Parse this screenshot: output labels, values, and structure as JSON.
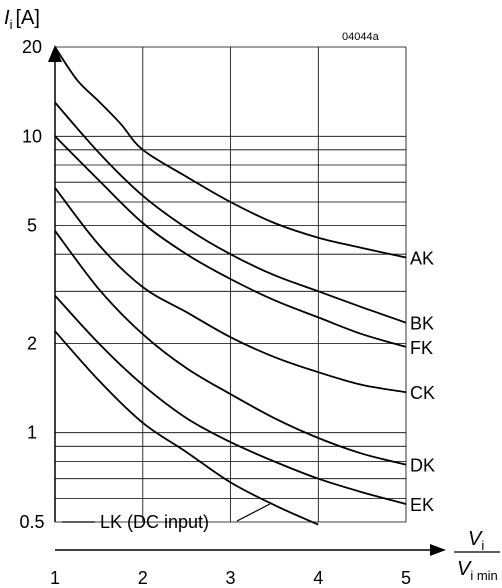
{
  "chart_data": {
    "type": "line",
    "y_scale": "log",
    "grid": "on",
    "code": "04044a",
    "ylabel": {
      "symbol": "I",
      "subscript": "i",
      "unit": "[A]"
    },
    "xlabel": {
      "num_symbol": "V",
      "num_sub": "i",
      "den_symbol": "V",
      "den_sub": "i min"
    },
    "xlim": [
      1,
      5
    ],
    "ylim": [
      0.5,
      20
    ],
    "x_ticks": [
      "1",
      "2",
      "3",
      "4",
      "5"
    ],
    "y_ticks": [
      {
        "value": 20,
        "label": "20"
      },
      {
        "value": 10,
        "label": "10"
      },
      {
        "value": 5,
        "label": "5"
      },
      {
        "value": 2,
        "label": "2"
      },
      {
        "value": 1,
        "label": "1"
      },
      {
        "value": 0.5,
        "label": "0.5"
      }
    ],
    "series": [
      {
        "name": "AK",
        "x": [
          1,
          1.25,
          1.5,
          1.75,
          2,
          2.5,
          3,
          3.5,
          4,
          4.5,
          5
        ],
        "values": [
          20,
          15.5,
          13.1,
          11.0,
          9.0,
          7.3,
          6.0,
          5.1,
          4.55,
          4.2,
          3.9
        ]
      },
      {
        "name": "BK",
        "x": [
          1,
          1.5,
          2,
          2.5,
          3,
          3.5,
          4,
          4.5,
          5
        ],
        "values": [
          13,
          8.8,
          6.3,
          4.9,
          4.0,
          3.4,
          3.0,
          2.65,
          2.35
        ]
      },
      {
        "name": "FK",
        "x": [
          1,
          1.5,
          2,
          2.5,
          3,
          3.5,
          4,
          4.5,
          5
        ],
        "values": [
          10,
          7.1,
          5.1,
          4.0,
          3.3,
          2.8,
          2.45,
          2.15,
          1.95
        ]
      },
      {
        "name": "CK",
        "x": [
          1,
          1.5,
          2,
          2.5,
          3,
          3.5,
          4,
          4.5,
          5
        ],
        "values": [
          6.7,
          4.3,
          3.1,
          2.55,
          2.1,
          1.8,
          1.6,
          1.45,
          1.37
        ]
      },
      {
        "name": "DK",
        "x": [
          1,
          1.5,
          2,
          2.5,
          3,
          3.5,
          4,
          4.5,
          5
        ],
        "values": [
          4.8,
          3.05,
          2.15,
          1.65,
          1.35,
          1.12,
          0.96,
          0.85,
          0.78
        ]
      },
      {
        "name": "EK",
        "x": [
          1,
          1.5,
          2,
          2.5,
          3,
          3.5,
          4,
          4.5,
          5
        ],
        "values": [
          2.9,
          2.0,
          1.45,
          1.12,
          0.93,
          0.8,
          0.7,
          0.63,
          0.575
        ]
      },
      {
        "name": "LK (DC input)",
        "x": [
          1,
          1.5,
          2,
          2.5,
          3,
          3.5,
          4
        ],
        "values": [
          2.2,
          1.5,
          1.08,
          0.86,
          0.68,
          0.57,
          0.49
        ]
      }
    ]
  }
}
